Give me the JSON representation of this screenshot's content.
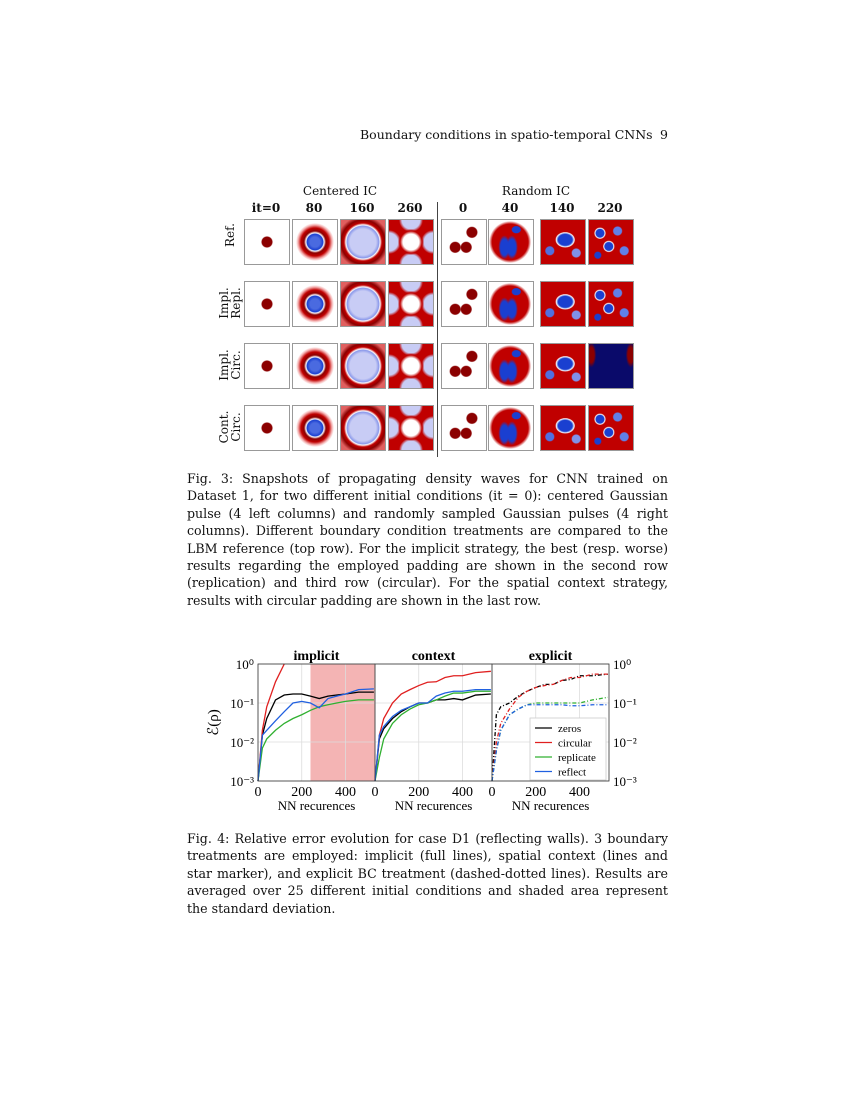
{
  "header": {
    "running_title": "Boundary conditions in spatio-temporal CNNs",
    "page_number": "9"
  },
  "figure3": {
    "group_labels": [
      "Centered IC",
      "Random IC"
    ],
    "column_labels": [
      "it=0",
      "80",
      "160",
      "260",
      "0",
      "40",
      "140",
      "220"
    ],
    "row_labels": [
      [
        "Ref.",
        ""
      ],
      [
        "Impl.",
        "Repl."
      ],
      [
        "Impl.",
        "Circ."
      ],
      [
        "Cont.",
        "Circ."
      ]
    ],
    "colors": {
      "red": "#c00000",
      "dark_red": "#8b0000",
      "blue": "#1a3fd0",
      "light_blue": "#c8ccf5",
      "navy": "#0a0a6a"
    },
    "caption": "Fig. 3: Snapshots of propagating density waves for CNN trained on Dataset 1, for two different initial conditions (it = 0): centered Gaussian pulse (4 left columns) and randomly sampled Gaussian pulses (4 right columns). Different boundary condition treatments are compared to the LBM reference (top row). For the implicit strategy, the best (resp. worse) results regarding the employed padding are shown in the second row (replication) and third row (circular). For the spatial context strategy, results with circular padding are shown in the last row."
  },
  "figure4": {
    "caption": "Fig. 4: Relative error evolution for case D1 (reflecting walls). 3 boundary treatments are employed: implicit (full lines), spatial context (lines and star marker), and explicit BC treatment (dashed-dotted lines). Results are averaged over 25 different initial conditions and shaded area represent the standard deviation."
  },
  "chart_data": [
    {
      "type": "line",
      "title": "implicit",
      "xlabel": "NN recurences",
      "ylabel": "ℰ(ρ)",
      "yscale": "log",
      "xlim": [
        0,
        535
      ],
      "ylim": [
        0.001,
        1
      ],
      "xticks": [
        "0",
        "200",
        "400"
      ],
      "yticks": [
        "10⁰",
        "10⁻¹",
        "10⁻²",
        "10⁻³"
      ],
      "grid": true,
      "shaded_region": [
        240,
        535
      ],
      "shaded_color": "#f4b4b4",
      "x": [
        0,
        20,
        40,
        80,
        120,
        160,
        200,
        240,
        280,
        320,
        360,
        400,
        460,
        530
      ],
      "series": [
        {
          "name": "zeros",
          "color": "#000000",
          "values": [
            0.001,
            0.015,
            0.04,
            0.12,
            0.16,
            0.17,
            0.17,
            0.15,
            0.13,
            0.15,
            0.16,
            0.17,
            0.19,
            0.19
          ]
        },
        {
          "name": "circular",
          "color": "#e02020",
          "values": [
            0.001,
            0.02,
            0.08,
            0.35,
            1.0,
            null,
            null,
            null,
            null,
            null,
            null,
            null,
            null,
            null
          ]
        },
        {
          "name": "replicate",
          "color": "#30b030",
          "values": [
            0.001,
            0.007,
            0.012,
            0.02,
            0.03,
            0.04,
            0.05,
            0.065,
            0.08,
            0.09,
            0.1,
            0.11,
            0.12,
            0.12
          ]
        },
        {
          "name": "reflect",
          "color": "#2060e0",
          "values": [
            0.001,
            0.015,
            0.02,
            0.035,
            0.06,
            0.1,
            0.11,
            0.1,
            0.075,
            0.13,
            0.15,
            0.17,
            0.22,
            0.23
          ]
        }
      ]
    },
    {
      "type": "line",
      "title": "context",
      "xlabel": "NN recurences",
      "yscale": "log",
      "xlim": [
        0,
        535
      ],
      "ylim": [
        0.001,
        1
      ],
      "xticks": [
        "0",
        "200",
        "400"
      ],
      "grid": true,
      "x": [
        0,
        20,
        40,
        80,
        120,
        160,
        200,
        240,
        280,
        320,
        360,
        400,
        460,
        530
      ],
      "series": [
        {
          "name": "zeros",
          "color": "#000000",
          "values": [
            0.001,
            0.012,
            0.022,
            0.04,
            0.06,
            0.08,
            0.1,
            0.1,
            0.12,
            0.12,
            0.13,
            0.12,
            0.16,
            0.17
          ]
        },
        {
          "name": "circular",
          "color": "#e02020",
          "values": [
            0.001,
            0.015,
            0.04,
            0.1,
            0.17,
            0.22,
            0.28,
            0.34,
            0.35,
            0.45,
            0.5,
            0.5,
            0.6,
            0.65
          ]
        },
        {
          "name": "replicate",
          "color": "#30b030",
          "values": [
            0.001,
            0.004,
            0.012,
            0.03,
            0.05,
            0.07,
            0.09,
            0.1,
            0.12,
            0.15,
            0.18,
            0.18,
            0.2,
            0.2
          ]
        },
        {
          "name": "reflect",
          "color": "#2060e0",
          "values": [
            0.001,
            0.015,
            0.025,
            0.045,
            0.065,
            0.08,
            0.1,
            0.1,
            0.15,
            0.18,
            0.2,
            0.2,
            0.22,
            0.22
          ]
        }
      ]
    },
    {
      "type": "line",
      "title": "explicit",
      "xlabel": "NN recurences",
      "yscale": "log",
      "xlim": [
        0,
        535
      ],
      "ylim": [
        0.001,
        1
      ],
      "xticks": [
        "0",
        "200",
        "400"
      ],
      "yticks_right": [
        "10⁰",
        "10⁻¹",
        "10⁻²",
        "10⁻³"
      ],
      "grid": true,
      "legend": {
        "position": "lower-right",
        "entries": [
          "zeros",
          "circular",
          "replicate",
          "reflect"
        ]
      },
      "x": [
        0,
        20,
        40,
        80,
        120,
        160,
        200,
        240,
        280,
        320,
        360,
        400,
        460,
        530
      ],
      "series": [
        {
          "name": "zeros",
          "color": "#000000",
          "values": [
            0.001,
            0.05,
            0.08,
            0.1,
            0.15,
            0.2,
            0.25,
            0.3,
            0.3,
            0.38,
            0.4,
            0.5,
            0.5,
            0.55
          ]
        },
        {
          "name": "circular",
          "color": "#e02020",
          "values": [
            0.001,
            0.01,
            0.03,
            0.07,
            0.14,
            0.2,
            0.25,
            0.28,
            0.3,
            0.38,
            0.45,
            0.45,
            0.55,
            0.55
          ]
        },
        {
          "name": "replicate",
          "color": "#30b030",
          "values": [
            0.001,
            0.006,
            0.02,
            0.05,
            0.07,
            0.09,
            0.1,
            0.1,
            0.1,
            0.1,
            0.1,
            0.1,
            0.12,
            0.14
          ]
        },
        {
          "name": "reflect",
          "color": "#2060e0",
          "values": [
            0.001,
            0.006,
            0.02,
            0.05,
            0.07,
            0.09,
            0.09,
            0.09,
            0.09,
            0.09,
            0.085,
            0.085,
            0.09,
            0.09
          ]
        }
      ]
    }
  ]
}
